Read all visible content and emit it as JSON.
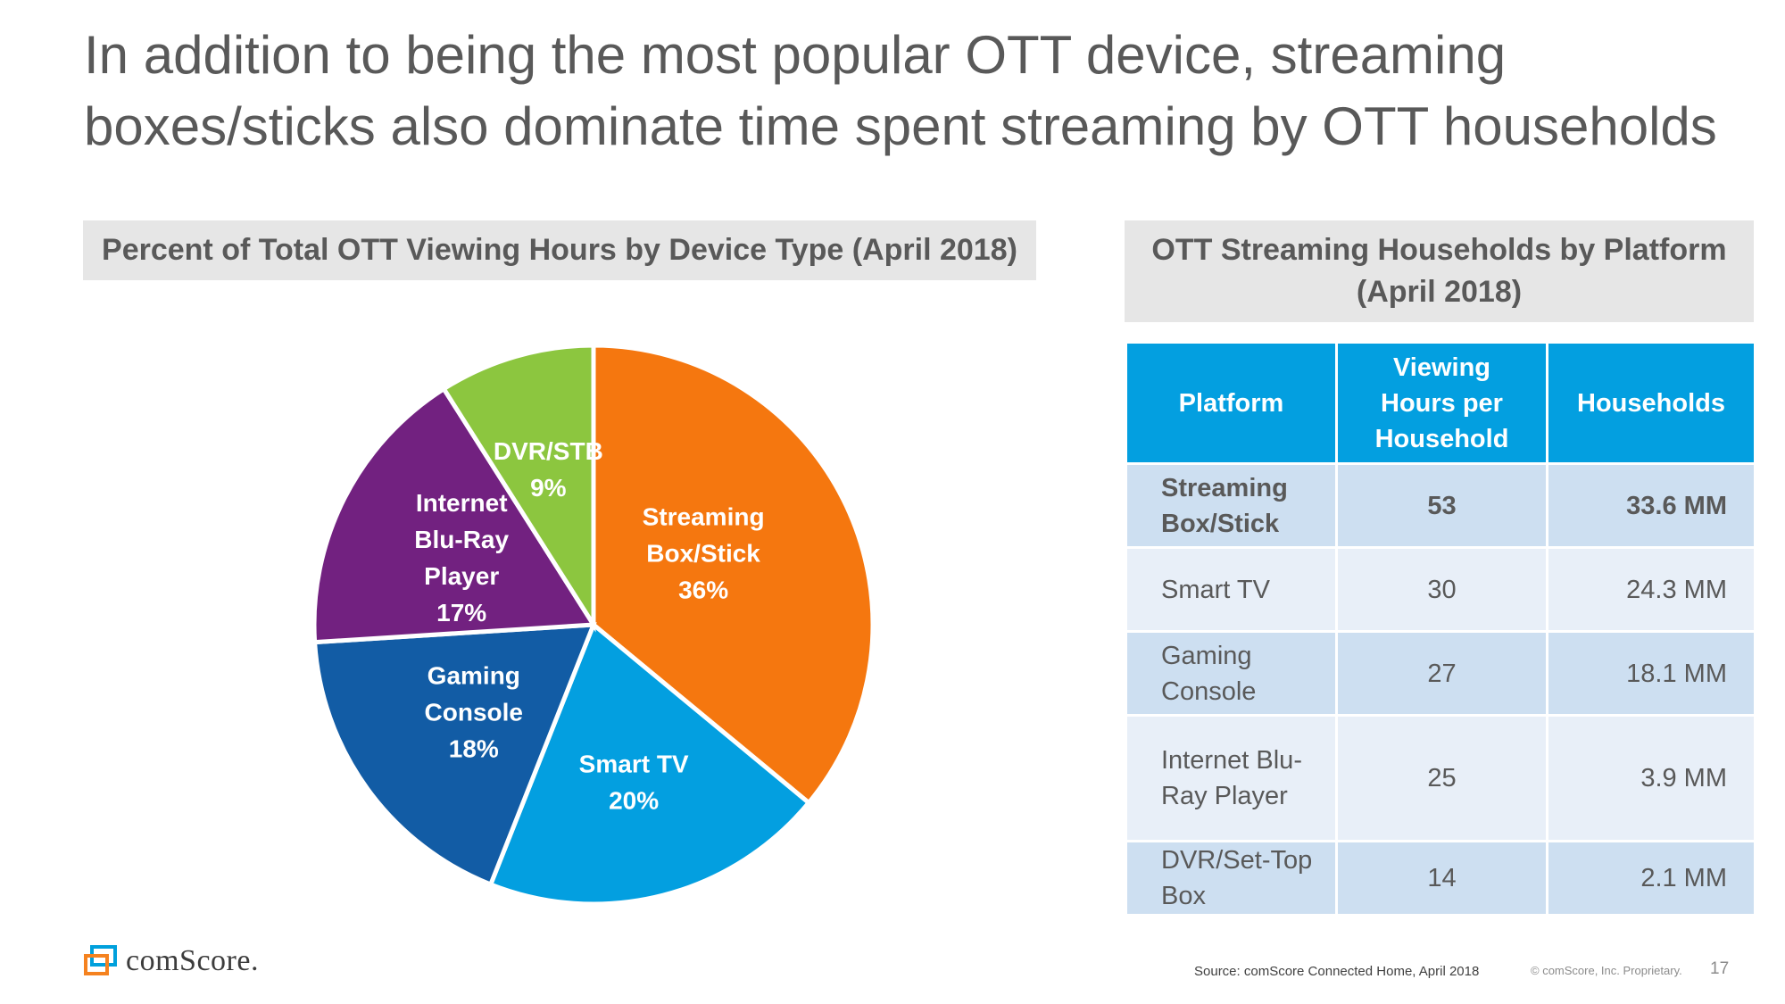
{
  "title": {
    "line1": "In addition to being the most popular OTT device, streaming",
    "line2": "boxes/sticks also dominate time spent streaming by OTT households"
  },
  "pie_panel": {
    "header": "Percent of Total OTT Viewing Hours by Device Type (April 2018)"
  },
  "chart_data": {
    "type": "pie",
    "title": "Percent of Total OTT Viewing Hours by Device Type (April 2018)",
    "slices": [
      {
        "label_lines": [
          "Streaming",
          "Box/Stick",
          "36%"
        ],
        "category": "Streaming Box/Stick",
        "value": 36,
        "color": "#f5770f"
      },
      {
        "label_lines": [
          "Smart TV",
          "20%"
        ],
        "category": "Smart TV",
        "value": 20,
        "color": "#039fe0"
      },
      {
        "label_lines": [
          "Gaming",
          "Console",
          "18%"
        ],
        "category": "Gaming Console",
        "value": 18,
        "color": "#125ca5"
      },
      {
        "label_lines": [
          "Internet",
          "Blu-Ray",
          "Player",
          "17%"
        ],
        "category": "Internet Blu-Ray Player",
        "value": 17,
        "color": "#722180"
      },
      {
        "label_lines": [
          "DVR/STB",
          "9%"
        ],
        "category": "DVR/STB",
        "value": 9,
        "color": "#8cc63f"
      }
    ]
  },
  "table_panel": {
    "header_line1": "OTT Streaming Households by Platform",
    "header_line2": "(April 2018)",
    "columns": {
      "platform": "Platform",
      "hours_line1": "Viewing",
      "hours_line2": "Hours per",
      "hours_line3": "Household",
      "households": "Households"
    },
    "rows": [
      {
        "platform_line1": "Streaming",
        "platform_line2": "Box/Stick",
        "hours": "53",
        "households": "33.6 MM"
      },
      {
        "platform_line1": "Smart TV",
        "platform_line2": "",
        "hours": "30",
        "households": "24.3 MM"
      },
      {
        "platform_line1": "Gaming",
        "platform_line2": "Console",
        "hours": "27",
        "households": "18.1 MM"
      },
      {
        "platform_line1": "Internet Blu-",
        "platform_line2": "Ray Player",
        "hours": "25",
        "households": "3.9 MM"
      },
      {
        "platform_line1": "DVR/Set-Top",
        "platform_line2": "Box",
        "hours": "14",
        "households": "2.1 MM"
      }
    ]
  },
  "footer": {
    "source": "Source: comScore Connected Home, April 2018",
    "copyright": "© comScore, Inc. Proprietary.",
    "page_number": "17",
    "logo_text": "comScore."
  },
  "colors": {
    "accent_blue": "#039fe0",
    "row_dark": "#cddff1",
    "row_light": "#e8eff8",
    "header_gray": "#e6e6e6",
    "logo_orange": "#f5821f",
    "logo_blue": "#00a0dc"
  }
}
